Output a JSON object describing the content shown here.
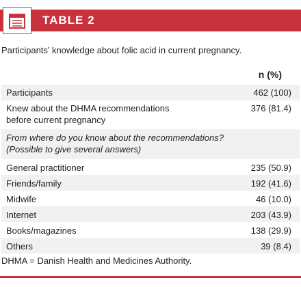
{
  "header": {
    "title": "TABLE 2",
    "icon": "table-document-icon",
    "accent": "#c7323d"
  },
  "caption": "Participants’ knowledge about folic acid in current pregnancy.",
  "table": {
    "column_header": "n (%)",
    "rows": [
      {
        "label": "Participants",
        "value": "462 (100)"
      },
      {
        "label": "Knew about the DHMA recommendations",
        "label_line2": "before current pregnancy",
        "value": "376 (81.4)"
      },
      {
        "label": "From where do you know about the recommendations?",
        "label_line2": "(Possible to give several answers)",
        "value": ""
      },
      {
        "label": "General practitioner",
        "value": "235 (50.9)"
      },
      {
        "label": "Friends/family",
        "value": "192 (41.6)"
      },
      {
        "label": "Midwife",
        "value": "46 (10.0)"
      },
      {
        "label": "Internet",
        "value": "203 (43.9)"
      },
      {
        "label": "Books/magazines",
        "value": "138 (29.9)"
      },
      {
        "label": "Others",
        "value": "39 (8.4)"
      }
    ]
  },
  "footnote": "DHMA = Danish Health and Medicines Authority."
}
